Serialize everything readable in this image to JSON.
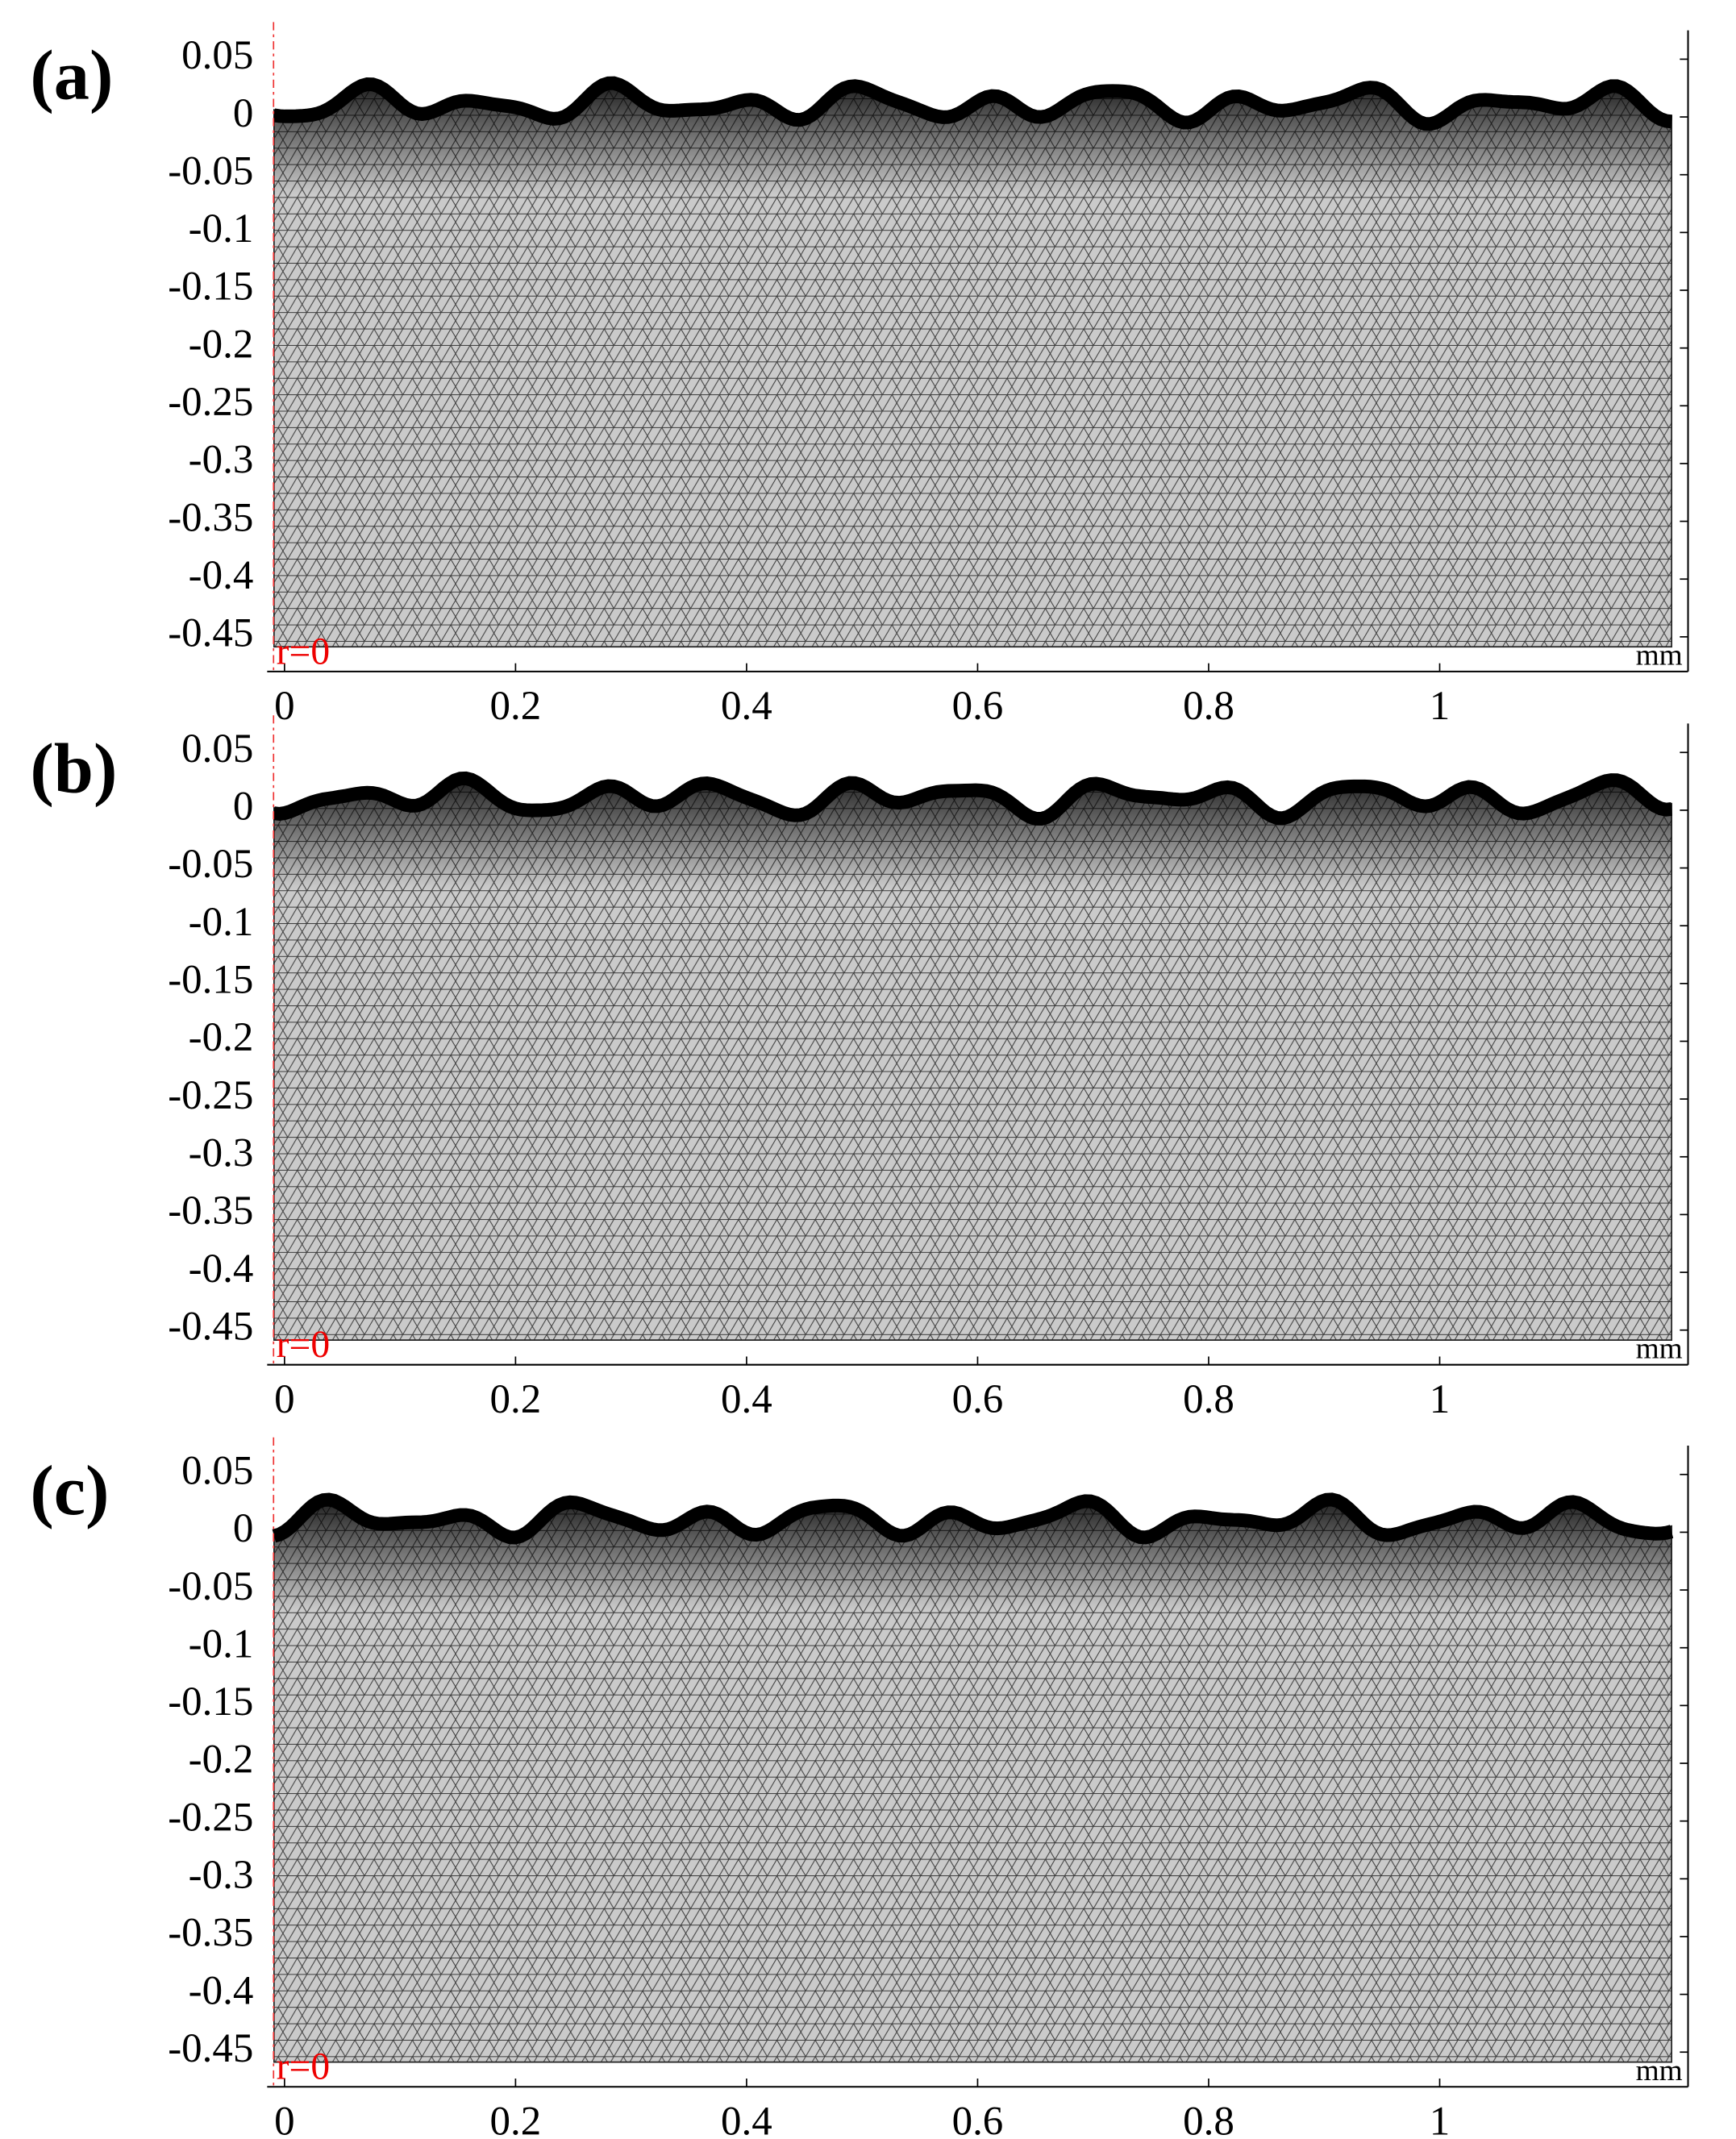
{
  "chart_data": [
    {
      "type": "mesh",
      "panel_label": "(a)",
      "annotation": "r=0",
      "x_unit": "mm",
      "xlim": [
        -0.015,
        1.215
      ],
      "ylim": [
        -0.48,
        0.075
      ],
      "xticks": [
        0,
        0.2,
        0.4,
        0.6,
        0.8,
        1
      ],
      "yticks": [
        0.05,
        0,
        -0.05,
        -0.1,
        -0.15,
        -0.2,
        -0.25,
        -0.3,
        -0.35,
        -0.4,
        -0.45
      ]
    },
    {
      "type": "mesh",
      "panel_label": "(b)",
      "annotation": "r=0",
      "x_unit": "mm",
      "xlim": [
        -0.015,
        1.215
      ],
      "ylim": [
        -0.48,
        0.075
      ],
      "xticks": [
        0,
        0.2,
        0.4,
        0.6,
        0.8,
        1
      ],
      "yticks": [
        0.05,
        0,
        -0.05,
        -0.1,
        -0.15,
        -0.2,
        -0.25,
        -0.3,
        -0.35,
        -0.4,
        -0.45
      ]
    },
    {
      "type": "mesh",
      "panel_label": "(c)",
      "annotation": "r=0",
      "x_unit": "mm",
      "xlim": [
        -0.015,
        1.215
      ],
      "ylim": [
        -0.48,
        0.075
      ],
      "xticks": [
        0,
        0.2,
        0.4,
        0.6,
        0.8,
        1
      ],
      "yticks": [
        0.05,
        0,
        -0.05,
        -0.1,
        -0.15,
        -0.2,
        -0.25,
        -0.3,
        -0.35,
        -0.4,
        -0.45
      ]
    }
  ]
}
